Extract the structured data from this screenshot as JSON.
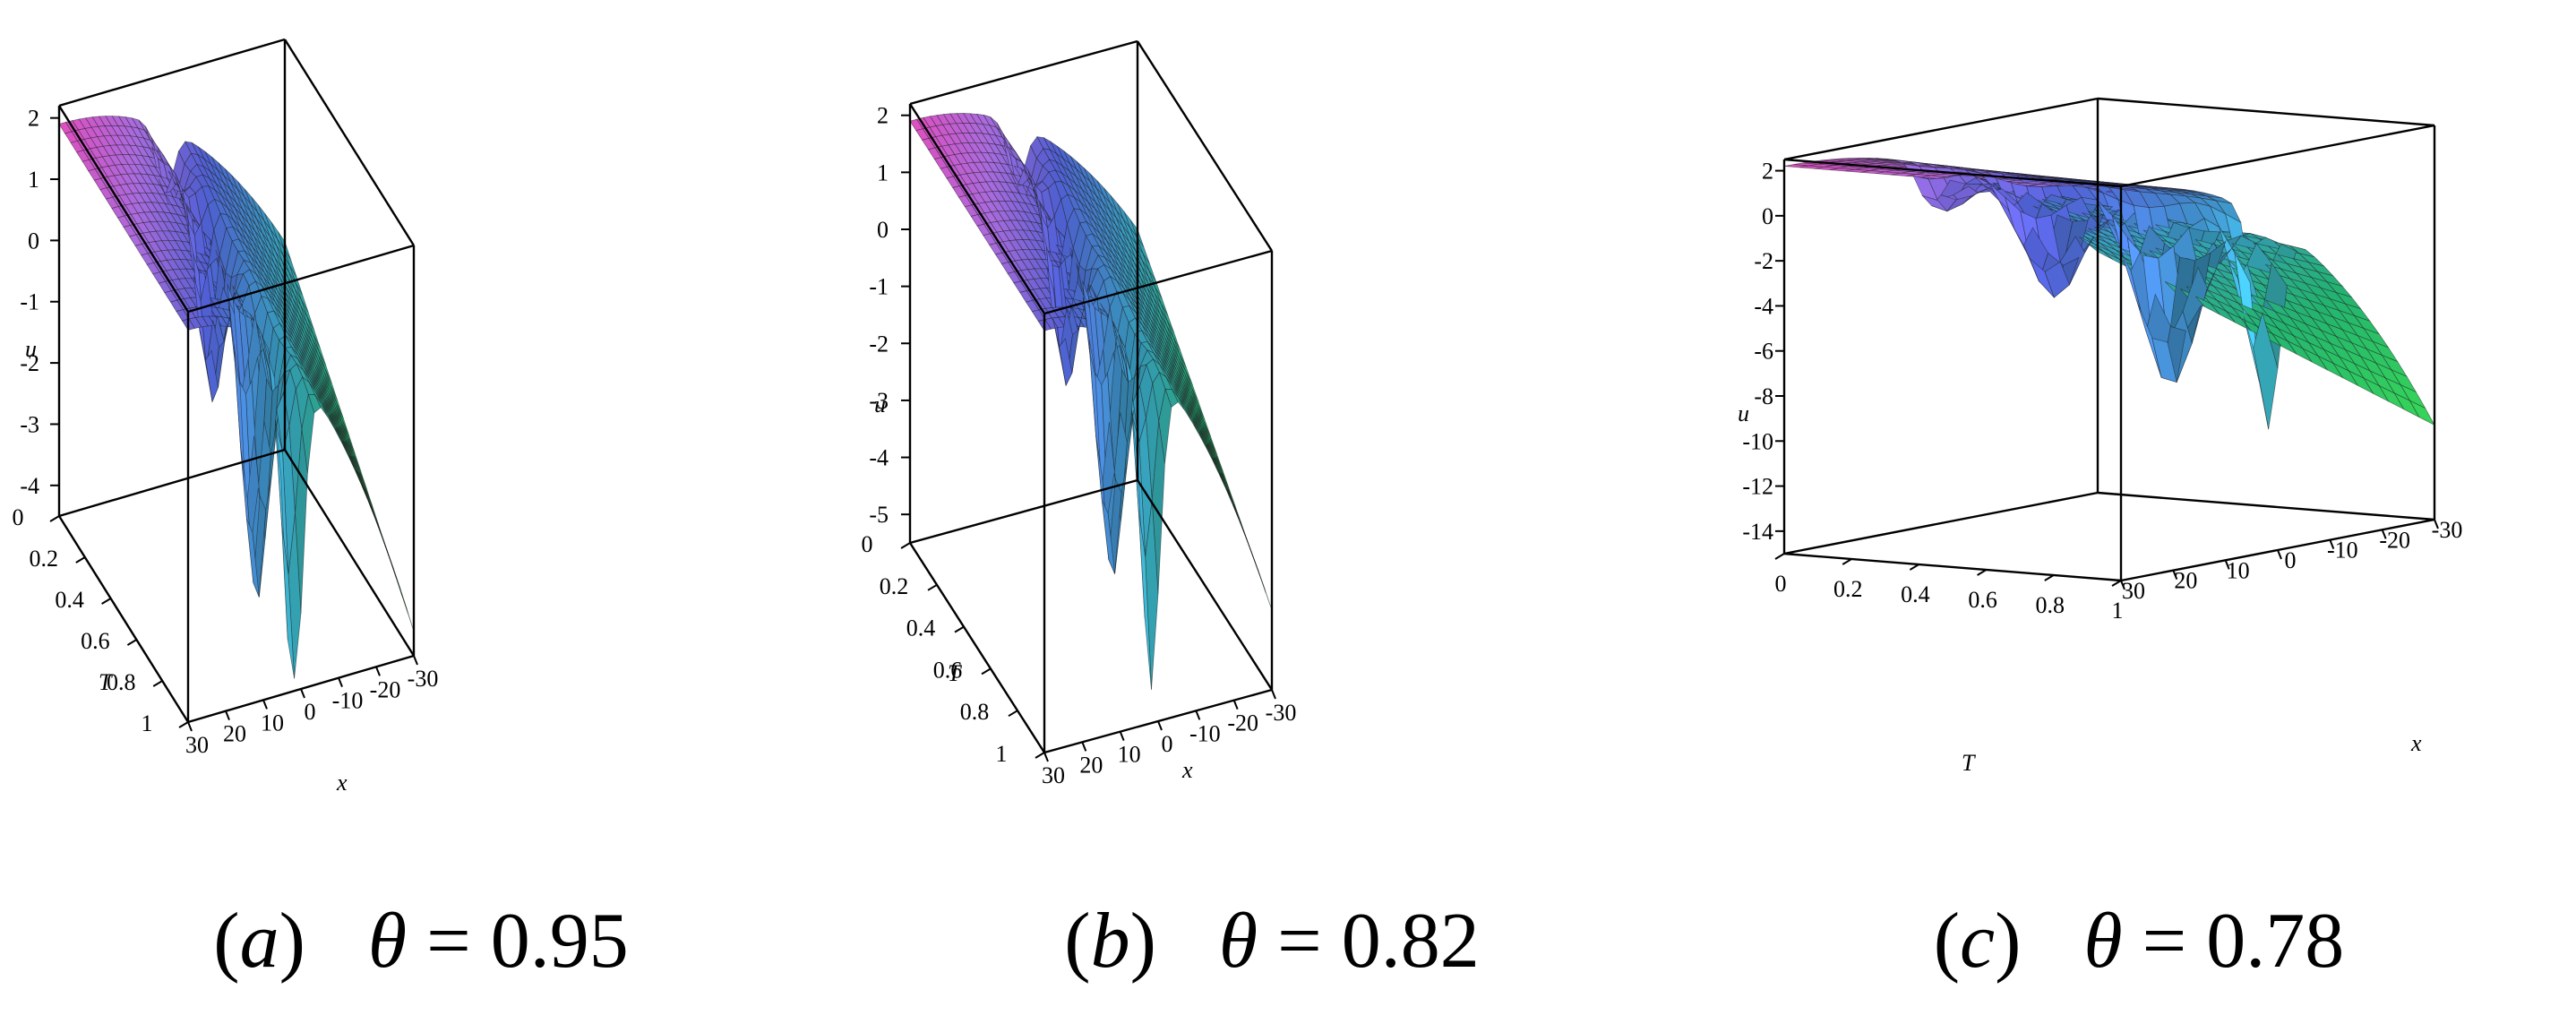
{
  "chart_data": [
    {
      "type": "surface",
      "panel": "a",
      "caption": {
        "letter": "a",
        "param_symbol": "θ",
        "param_value": "0.95"
      },
      "xlabel": "x",
      "ylabel": "T",
      "zlabel": "u",
      "x_ticks": [
        "-30",
        "-20",
        "-10",
        "0",
        "10",
        "20",
        "30"
      ],
      "t_ticks": [
        "0",
        "0.2",
        "0.4",
        "0.6",
        "0.8",
        "1"
      ],
      "u_ticks": [
        "2",
        "1",
        "0",
        "-1",
        "-2",
        "-3",
        "-4"
      ],
      "xlim": [
        -30,
        30
      ],
      "tlim": [
        0,
        1
      ],
      "ulim": [
        -4.5,
        2.2
      ],
      "colormap": [
        "#ff5ce0",
        "#c27bff",
        "#5b6cf0",
        "#3fb0d8",
        "#27c47a",
        "#3dea5a"
      ]
    },
    {
      "type": "surface",
      "panel": "b",
      "caption": {
        "letter": "b",
        "param_symbol": "θ",
        "param_value": "0.82"
      },
      "xlabel": "x",
      "ylabel": "T",
      "zlabel": "u",
      "x_ticks": [
        "-30",
        "-20",
        "-10",
        "0",
        "10",
        "20",
        "30"
      ],
      "t_ticks": [
        "0",
        "0.2",
        "0.4",
        "0.6",
        "0.8",
        "1"
      ],
      "u_ticks": [
        "2",
        "1",
        "0",
        "-1",
        "-2",
        "-3",
        "-4",
        "-5"
      ],
      "xlim": [
        -30,
        30
      ],
      "tlim": [
        0,
        1
      ],
      "ulim": [
        -5.5,
        2.2
      ],
      "colormap": [
        "#ff5ce0",
        "#c27bff",
        "#5b6cf0",
        "#3fb0d8",
        "#27c47a",
        "#3dea5a"
      ]
    },
    {
      "type": "surface",
      "panel": "c",
      "caption": {
        "letter": "c",
        "param_symbol": "θ",
        "param_value": "0.78"
      },
      "xlabel": "x",
      "ylabel": "T",
      "zlabel": "u",
      "x_ticks": [
        "30",
        "20",
        "10",
        "0",
        "-10",
        "-20",
        "-30"
      ],
      "t_ticks": [
        "0",
        "0.2",
        "0.4",
        "0.6",
        "0.8",
        "1"
      ],
      "u_ticks": [
        "2",
        "0",
        "-2",
        "-4",
        "-6",
        "-8",
        "-10",
        "-12",
        "-14"
      ],
      "xlim": [
        -30,
        30
      ],
      "tlim": [
        0,
        1
      ],
      "ulim": [
        -15,
        2.5
      ],
      "colormap": [
        "#ff5ce0",
        "#c27bff",
        "#5b6cf0",
        "#3fb0d8",
        "#27c47a",
        "#3dea5a"
      ]
    }
  ]
}
